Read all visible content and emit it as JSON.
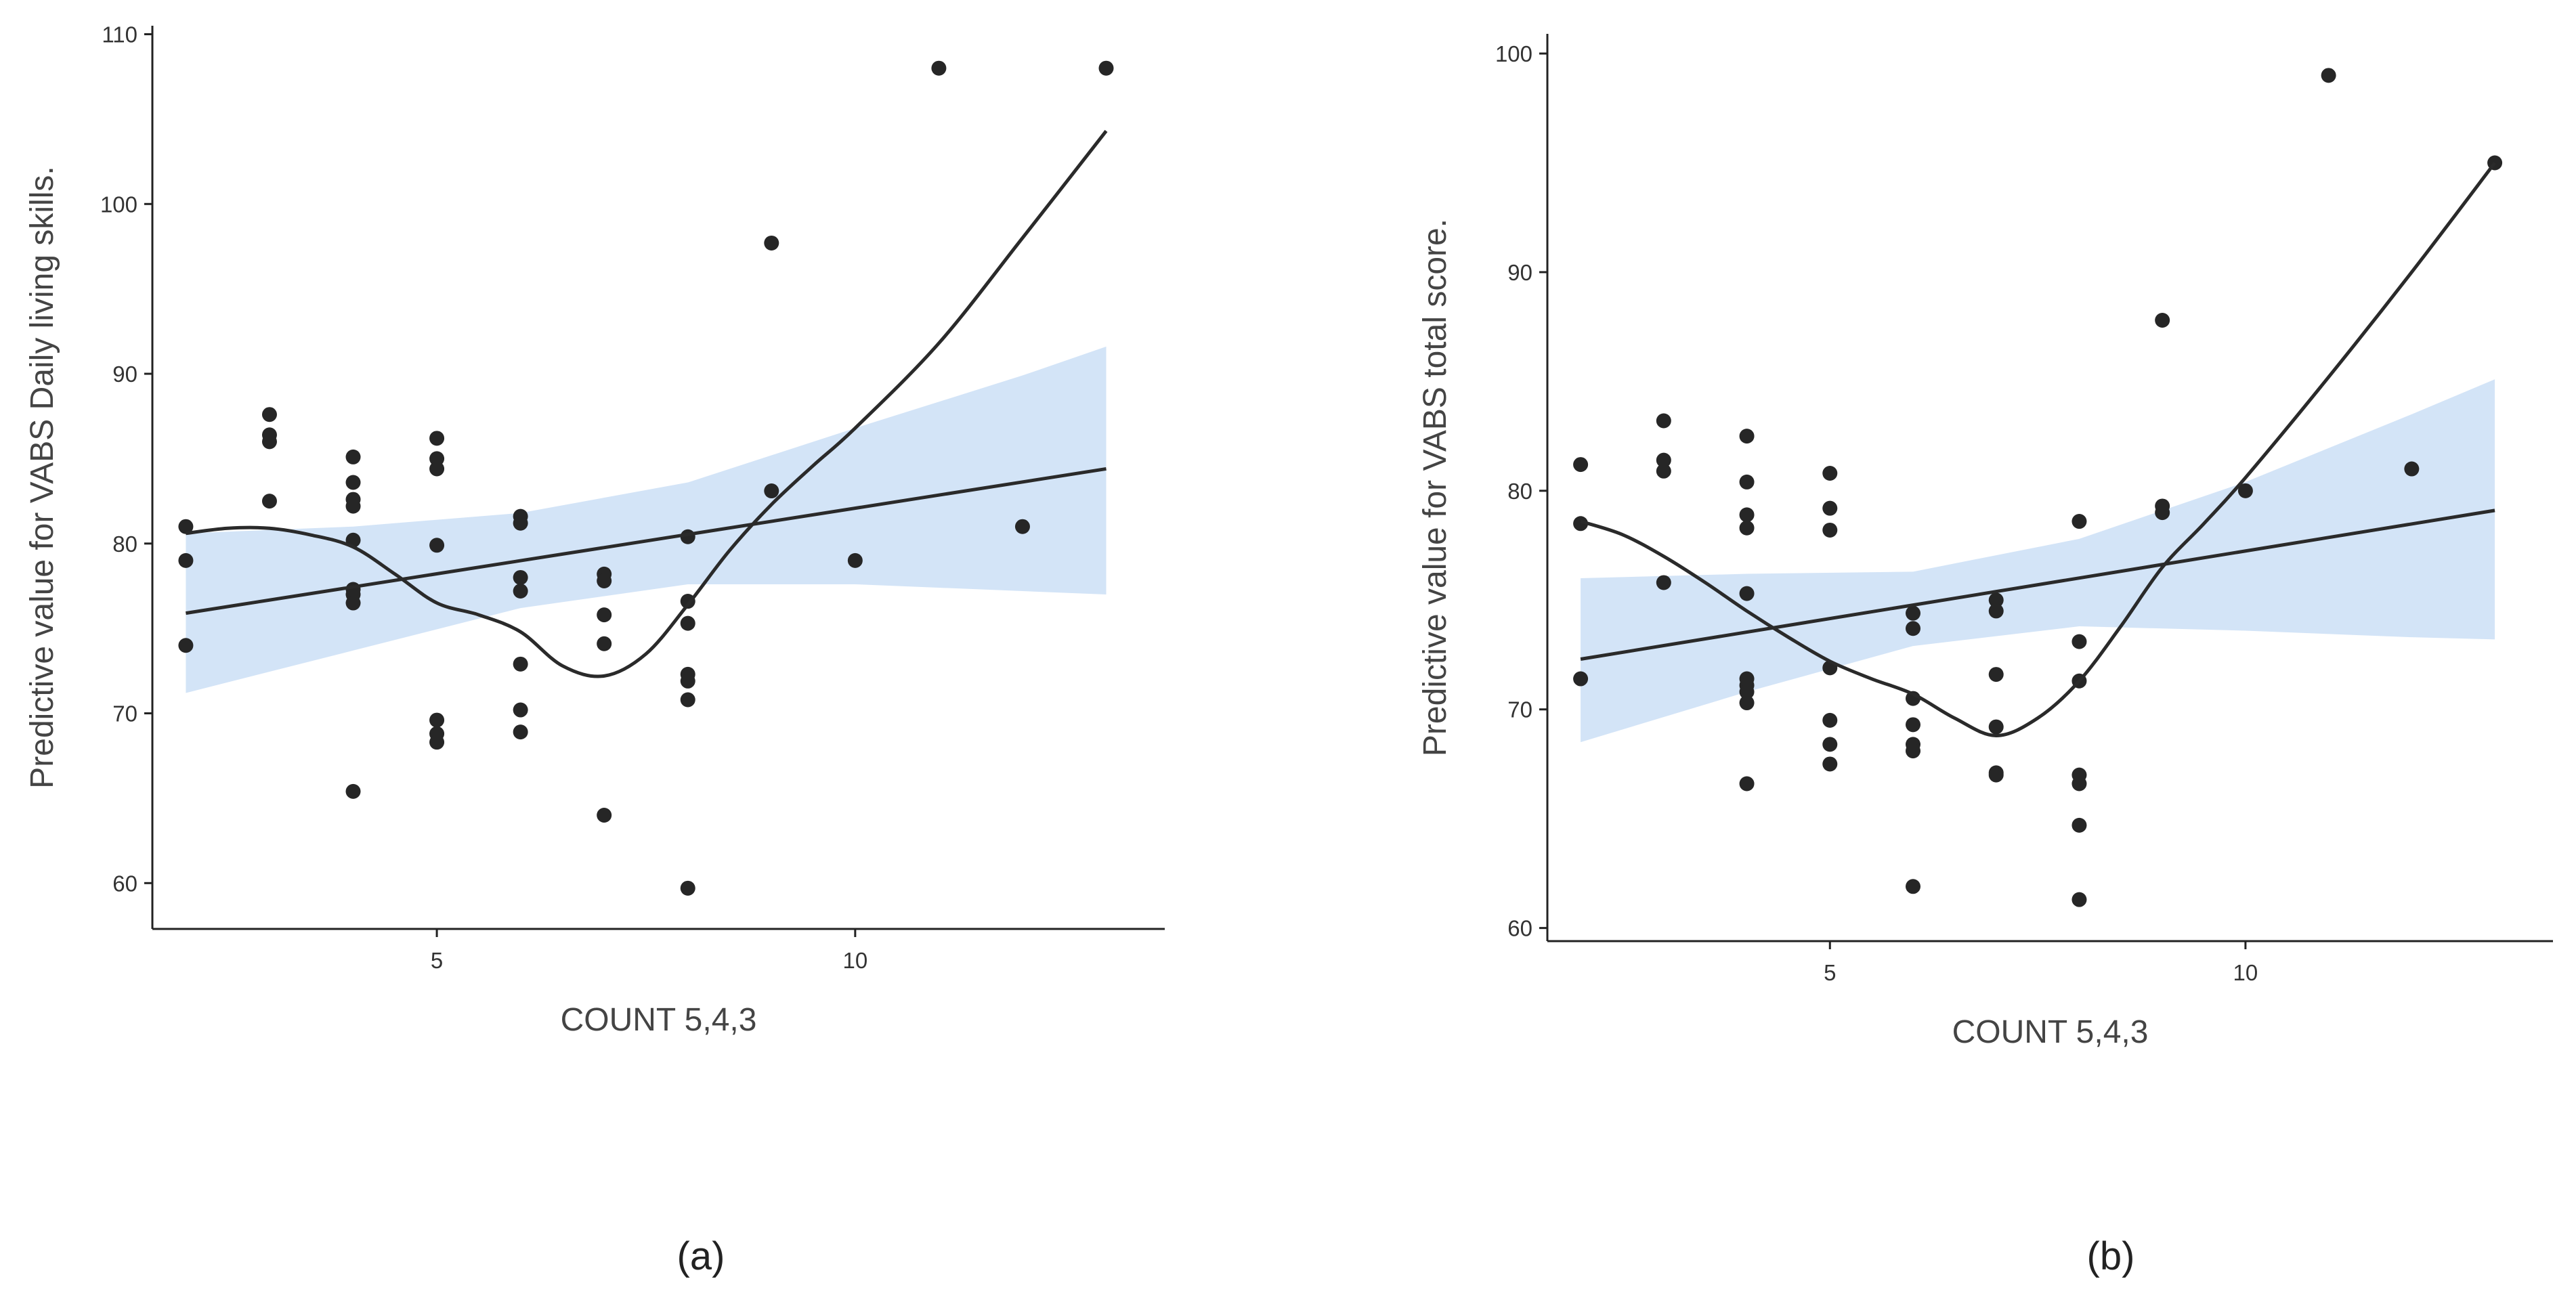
{
  "chart_data": [
    {
      "type": "scatter",
      "panel_label": "(a)",
      "xlabel": "COUNT 5,4,3",
      "ylabel": "Predictive value for VABS Daily living skills.",
      "xlim": [
        1.6,
        13.7
      ],
      "ylim": [
        57.3,
        110.5
      ],
      "x_ticks": [
        5,
        10
      ],
      "y_ticks": [
        60,
        70,
        80,
        90,
        100,
        110
      ],
      "points": [
        {
          "x": 2,
          "y": 81
        },
        {
          "x": 2,
          "y": 79
        },
        {
          "x": 2,
          "y": 74
        },
        {
          "x": 3,
          "y": 87.6
        },
        {
          "x": 3,
          "y": 86.4
        },
        {
          "x": 3,
          "y": 86
        },
        {
          "x": 3,
          "y": 82.5
        },
        {
          "x": 4,
          "y": 85.1
        },
        {
          "x": 4,
          "y": 83.6
        },
        {
          "x": 4,
          "y": 82.6
        },
        {
          "x": 4,
          "y": 82.2
        },
        {
          "x": 4,
          "y": 80.2
        },
        {
          "x": 4,
          "y": 77.3
        },
        {
          "x": 4,
          "y": 77
        },
        {
          "x": 4,
          "y": 76.5
        },
        {
          "x": 4,
          "y": 65.4
        },
        {
          "x": 5,
          "y": 86.2
        },
        {
          "x": 5,
          "y": 85
        },
        {
          "x": 5,
          "y": 84.4
        },
        {
          "x": 5,
          "y": 79.9
        },
        {
          "x": 5,
          "y": 69.6
        },
        {
          "x": 5,
          "y": 68.8
        },
        {
          "x": 5,
          "y": 68.3
        },
        {
          "x": 6,
          "y": 81.6
        },
        {
          "x": 6,
          "y": 81.2
        },
        {
          "x": 6,
          "y": 78
        },
        {
          "x": 6,
          "y": 77.2
        },
        {
          "x": 6,
          "y": 72.9
        },
        {
          "x": 6,
          "y": 70.2
        },
        {
          "x": 6,
          "y": 68.9
        },
        {
          "x": 7,
          "y": 78.2
        },
        {
          "x": 7,
          "y": 77.8
        },
        {
          "x": 7,
          "y": 75.8
        },
        {
          "x": 7,
          "y": 74.1
        },
        {
          "x": 7,
          "y": 64
        },
        {
          "x": 8,
          "y": 80.4
        },
        {
          "x": 8,
          "y": 76.6
        },
        {
          "x": 8,
          "y": 75.3
        },
        {
          "x": 8,
          "y": 72.3
        },
        {
          "x": 8,
          "y": 71.9
        },
        {
          "x": 8,
          "y": 70.8
        },
        {
          "x": 8,
          "y": 59.7
        },
        {
          "x": 9,
          "y": 97.7
        },
        {
          "x": 9,
          "y": 83.1
        },
        {
          "x": 10,
          "y": 79
        },
        {
          "x": 11,
          "y": 108
        },
        {
          "x": 12,
          "y": 81
        },
        {
          "x": 13,
          "y": 108
        }
      ],
      "linear_fit": {
        "x": [
          2,
          13
        ],
        "y": [
          75.9,
          84.4
        ]
      },
      "confidence_band": {
        "x": [
          2,
          4,
          6,
          8,
          10,
          12,
          13
        ],
        "upper": [
          80.6,
          81,
          81.8,
          83.6,
          86.8,
          89.9,
          91.6
        ],
        "lower": [
          71.2,
          73.7,
          76.2,
          77.6,
          77.6,
          77.2,
          77.0
        ]
      },
      "smooth_curve": {
        "x": [
          2,
          2.5,
          3,
          3.5,
          4,
          4.5,
          5,
          5.5,
          6,
          6.5,
          7,
          7.5,
          8,
          8.5,
          9,
          9.5,
          10,
          11,
          12,
          13
        ],
        "y": [
          80.6,
          80.9,
          80.9,
          80.5,
          79.8,
          78.2,
          76.5,
          75.8,
          74.8,
          72.8,
          72.2,
          73.5,
          76.4,
          79.6,
          82.3,
          84.6,
          86.8,
          91.8,
          98,
          104.3
        ]
      }
    },
    {
      "type": "scatter",
      "panel_label": "(b)",
      "xlabel": "COUNT 5,4,3",
      "ylabel": "Predictive value for VABS total score.",
      "xlim": [
        1.6,
        13.7
      ],
      "ylim": [
        59.4,
        100.9
      ],
      "x_ticks": [
        5,
        10
      ],
      "y_ticks": [
        60,
        70,
        80,
        90,
        100
      ],
      "points": [
        {
          "x": 2,
          "y": 81.2
        },
        {
          "x": 2,
          "y": 78.5
        },
        {
          "x": 2,
          "y": 71.4
        },
        {
          "x": 3,
          "y": 83.2
        },
        {
          "x": 3,
          "y": 81.4
        },
        {
          "x": 3,
          "y": 80.9
        },
        {
          "x": 3,
          "y": 75.8
        },
        {
          "x": 4,
          "y": 82.5
        },
        {
          "x": 4,
          "y": 80.4
        },
        {
          "x": 4,
          "y": 78.9
        },
        {
          "x": 4,
          "y": 78.3
        },
        {
          "x": 4,
          "y": 75.3
        },
        {
          "x": 4,
          "y": 71.4
        },
        {
          "x": 4,
          "y": 71.1
        },
        {
          "x": 4,
          "y": 70.8
        },
        {
          "x": 4,
          "y": 70.3
        },
        {
          "x": 4,
          "y": 66.6
        },
        {
          "x": 5,
          "y": 80.8
        },
        {
          "x": 5,
          "y": 79.2
        },
        {
          "x": 5,
          "y": 78.2
        },
        {
          "x": 5,
          "y": 71.9
        },
        {
          "x": 5,
          "y": 69.5
        },
        {
          "x": 5,
          "y": 68.4
        },
        {
          "x": 5,
          "y": 67.5
        },
        {
          "x": 6,
          "y": 74.4
        },
        {
          "x": 6,
          "y": 73.7
        },
        {
          "x": 6,
          "y": 70.5
        },
        {
          "x": 6,
          "y": 69.3
        },
        {
          "x": 6,
          "y": 68.4
        },
        {
          "x": 6,
          "y": 68.1
        },
        {
          "x": 6,
          "y": 61.9
        },
        {
          "x": 7,
          "y": 75
        },
        {
          "x": 7,
          "y": 74.5
        },
        {
          "x": 7,
          "y": 71.6
        },
        {
          "x": 7,
          "y": 69.2
        },
        {
          "x": 7,
          "y": 67.1
        },
        {
          "x": 7,
          "y": 67
        },
        {
          "x": 8,
          "y": 78.6
        },
        {
          "x": 8,
          "y": 73.1
        },
        {
          "x": 8,
          "y": 71.3
        },
        {
          "x": 8,
          "y": 67
        },
        {
          "x": 8,
          "y": 66.6
        },
        {
          "x": 8,
          "y": 64.7
        },
        {
          "x": 8,
          "y": 61.3
        },
        {
          "x": 9,
          "y": 87.8
        },
        {
          "x": 9,
          "y": 79.3
        },
        {
          "x": 9,
          "y": 79
        },
        {
          "x": 10,
          "y": 80
        },
        {
          "x": 11,
          "y": 99
        },
        {
          "x": 12,
          "y": 81
        },
        {
          "x": 13,
          "y": 95
        }
      ],
      "linear_fit": {
        "x": [
          2,
          13
        ],
        "y": [
          72.3,
          79.1
        ]
      },
      "confidence_band": {
        "x": [
          2,
          4,
          6,
          8,
          10,
          12,
          13
        ],
        "upper": [
          76,
          76.2,
          76.3,
          77.8,
          80.4,
          83.5,
          85.1
        ],
        "lower": [
          68.5,
          70.8,
          72.9,
          73.8,
          73.6,
          73.3,
          73.2
        ]
      },
      "smooth_curve": {
        "x": [
          2,
          2.5,
          3,
          3.5,
          4,
          4.5,
          5,
          5.5,
          6,
          6.5,
          7,
          7.5,
          8,
          8.5,
          9,
          9.5,
          10,
          11,
          12,
          13
        ],
        "y": [
          78.6,
          78,
          77,
          75.8,
          74.5,
          73.3,
          72.2,
          71.4,
          70.7,
          69.6,
          68.8,
          69.6,
          71.3,
          73.8,
          76.5,
          78.5,
          80.6,
          85.2,
          90,
          95
        ]
      }
    }
  ]
}
